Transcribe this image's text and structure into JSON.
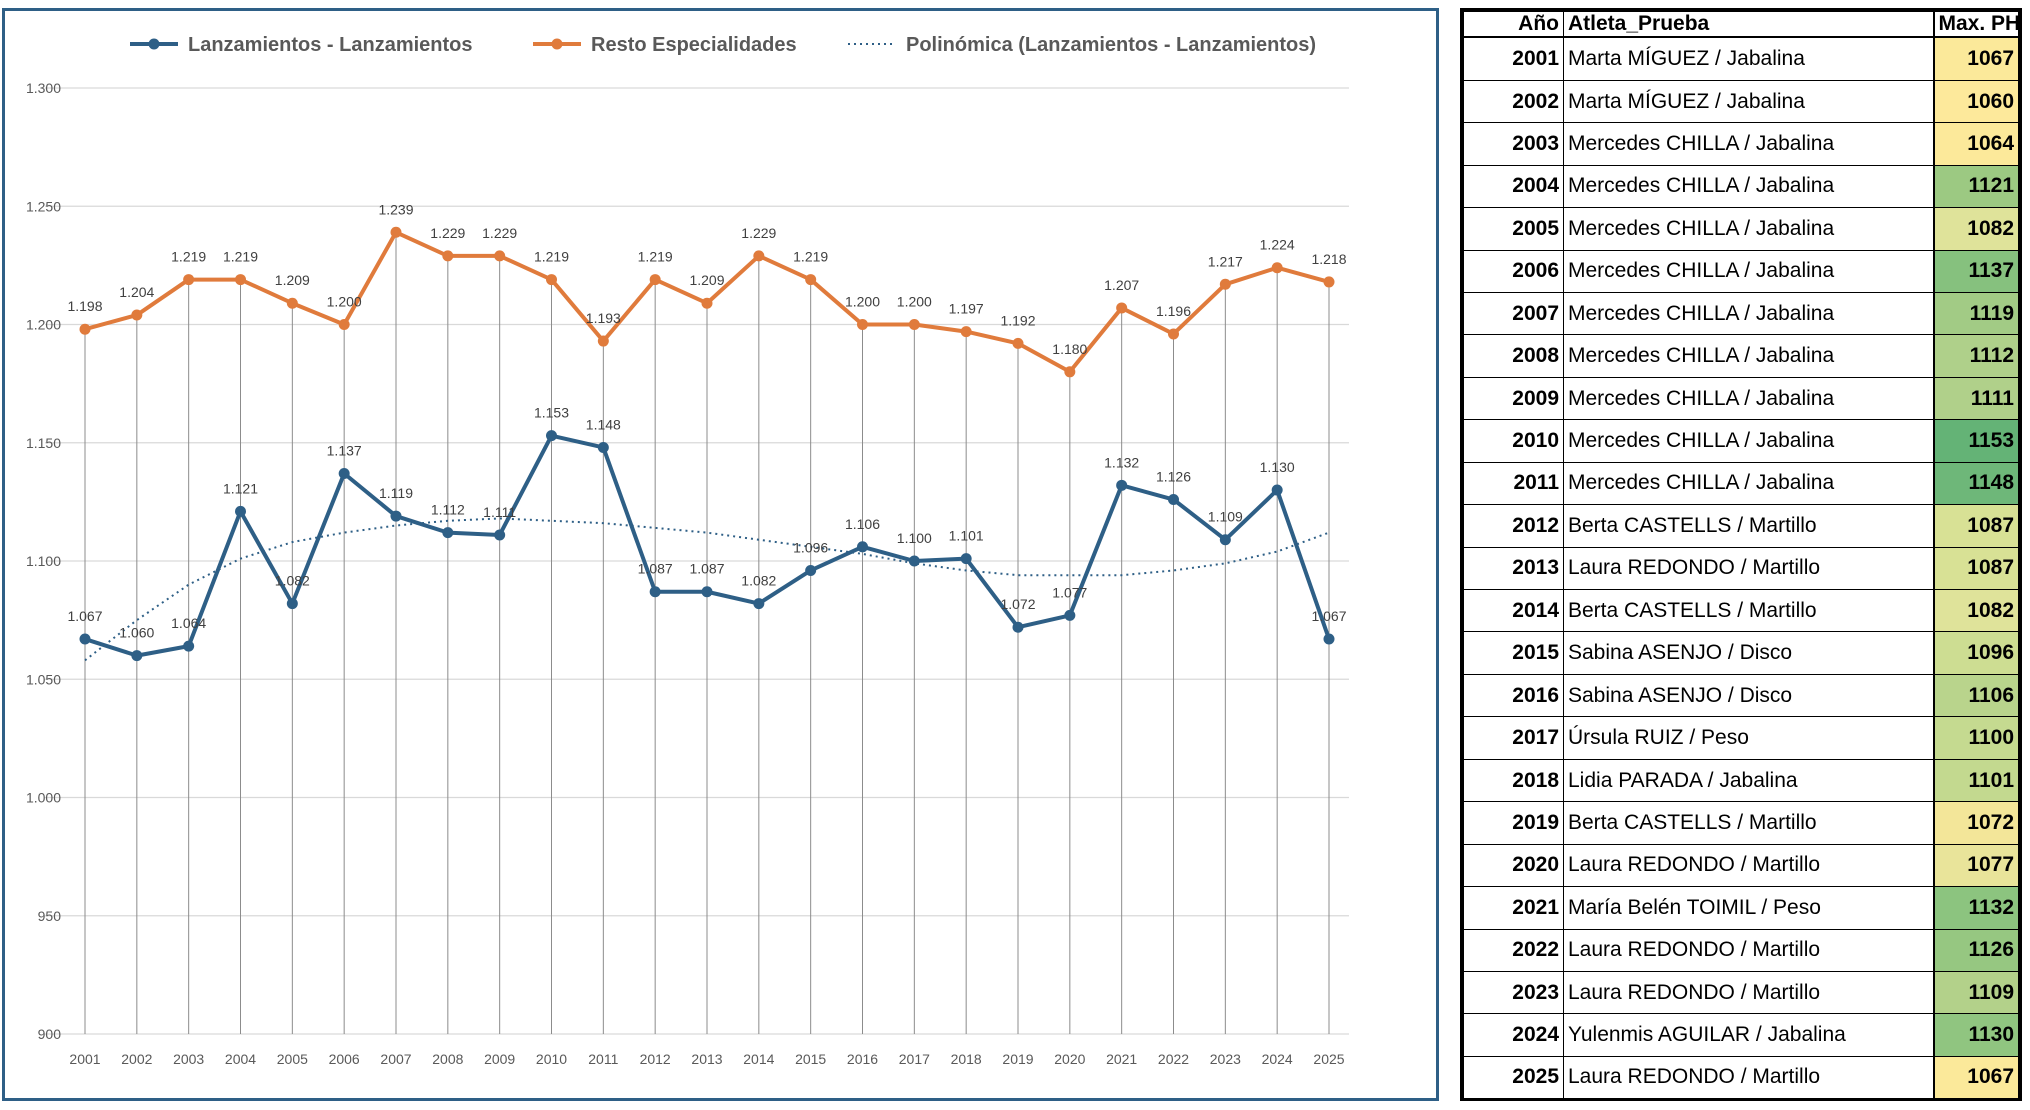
{
  "chart_data": {
    "type": "line",
    "categories": [
      "2001",
      "2002",
      "2003",
      "2004",
      "2005",
      "2006",
      "2007",
      "2008",
      "2009",
      "2010",
      "2011",
      "2012",
      "2013",
      "2014",
      "2015",
      "2016",
      "2017",
      "2018",
      "2019",
      "2020",
      "2021",
      "2022",
      "2023",
      "2024",
      "2025"
    ],
    "series": [
      {
        "name": "Lanzamientos - Lanzamientos",
        "color": "#2e5f86",
        "values": [
          1067,
          1060,
          1064,
          1121,
          1082,
          1137,
          1119,
          1112,
          1111,
          1153,
          1148,
          1087,
          1087,
          1082,
          1096,
          1106,
          1100,
          1101,
          1072,
          1077,
          1132,
          1126,
          1109,
          1130,
          1067
        ],
        "labels": [
          "1.067",
          "1.060",
          "1.064",
          "1.121",
          "1.082",
          "1.137",
          "1.119",
          "1.112",
          "1.111",
          "1.153",
          "1.148",
          "1.087",
          "1.087",
          "1.082",
          "1.096",
          "1.106",
          "1.100",
          "1.101",
          "1.072",
          "1.077",
          "1.132",
          "1.126",
          "1.109",
          "1.130",
          "1.067"
        ]
      },
      {
        "name": "Resto Especialidades",
        "color": "#e07b3c",
        "values": [
          1198,
          1204,
          1219,
          1219,
          1209,
          1200,
          1239,
          1229,
          1229,
          1219,
          1193,
          1219,
          1209,
          1229,
          1219,
          1200,
          1200,
          1197,
          1192,
          1180,
          1207,
          1196,
          1217,
          1224,
          1218
        ],
        "labels": [
          "1.198",
          "1.204",
          "1.219",
          "1.219",
          "1.209",
          "1.200",
          "1.239",
          "1.229",
          "1.229",
          "1.219",
          "1.193",
          "1.219",
          "1.209",
          "1.229",
          "1.219",
          "1.200",
          "1.200",
          "1.197",
          "1.192",
          "1.180",
          "1.207",
          "1.196",
          "1.217",
          "1.224",
          "1.218"
        ]
      }
    ],
    "trendline": {
      "name": "Polinómica (Lanzamientos - Lanzamientos)",
      "color": "#2e5f86",
      "style": "dotted",
      "values": [
        1058,
        1075,
        1090,
        1101,
        1108,
        1112,
        1115,
        1117,
        1118,
        1117,
        1116,
        1114,
        1112,
        1109,
        1106,
        1103,
        1099,
        1096,
        1094,
        1094,
        1094,
        1096,
        1099,
        1104,
        1112
      ]
    },
    "ylim": [
      900,
      1300
    ],
    "yticks": [
      900,
      950,
      1000,
      1050,
      1100,
      1150,
      1200,
      1250,
      1300
    ],
    "ytick_labels": [
      "900",
      "950",
      "1.000",
      "1.050",
      "1.100",
      "1.150",
      "1.200",
      "1.250",
      "1.300"
    ],
    "legend_position": "top",
    "grid": true
  },
  "table": {
    "headers": {
      "year": "Año",
      "athlete": "Atleta_Prueba",
      "max": "Max. PH"
    },
    "rows": [
      {
        "year": "2001",
        "athlete": "Marta MÍGUEZ / Jabalina",
        "max": "1067",
        "color": "#fbe99a"
      },
      {
        "year": "2002",
        "athlete": "Marta MÍGUEZ / Jabalina",
        "max": "1060",
        "color": "#fde99b"
      },
      {
        "year": "2003",
        "athlete": "Mercedes CHILLA / Jabalina",
        "max": "1064",
        "color": "#fce99a"
      },
      {
        "year": "2004",
        "athlete": "Mercedes CHILLA / Jabalina",
        "max": "1121",
        "color": "#9cc982"
      },
      {
        "year": "2005",
        "athlete": "Mercedes CHILLA / Jabalina",
        "max": "1082",
        "color": "#dfe39a"
      },
      {
        "year": "2006",
        "athlete": "Mercedes CHILLA / Jabalina",
        "max": "1137",
        "color": "#86c17e"
      },
      {
        "year": "2007",
        "athlete": "Mercedes CHILLA / Jabalina",
        "max": "1119",
        "color": "#a2cb85"
      },
      {
        "year": "2008",
        "athlete": "Mercedes CHILLA / Jabalina",
        "max": "1112",
        "color": "#afd08a"
      },
      {
        "year": "2009",
        "athlete": "Mercedes CHILLA / Jabalina",
        "max": "1111",
        "color": "#b0d08a"
      },
      {
        "year": "2010",
        "athlete": "Mercedes CHILLA / Jabalina",
        "max": "1153",
        "color": "#64b376"
      },
      {
        "year": "2011",
        "athlete": "Mercedes CHILLA / Jabalina",
        "max": "1148",
        "color": "#6eb779"
      },
      {
        "year": "2012",
        "athlete": "Berta CASTELLS / Martillo",
        "max": "1087",
        "color": "#d8e195"
      },
      {
        "year": "2013",
        "athlete": "Laura REDONDO / Martillo",
        "max": "1087",
        "color": "#d8e195"
      },
      {
        "year": "2014",
        "athlete": "Berta CASTELLS / Martillo",
        "max": "1082",
        "color": "#dfe39a"
      },
      {
        "year": "2015",
        "athlete": "Sabina ASENJO / Disco",
        "max": "1096",
        "color": "#cddd92"
      },
      {
        "year": "2016",
        "athlete": "Sabina ASENJO / Disco",
        "max": "1106",
        "color": "#b9d48c"
      },
      {
        "year": "2017",
        "athlete": "Úrsula RUIZ / Peso",
        "max": "1100",
        "color": "#c5da90"
      },
      {
        "year": "2018",
        "athlete": "Lidia PARADA / Jabalina",
        "max": "1101",
        "color": "#c3d98f"
      },
      {
        "year": "2019",
        "athlete": "Berta CASTELLS / Martillo",
        "max": "1072",
        "color": "#f3e699"
      },
      {
        "year": "2020",
        "athlete": "Laura REDONDO / Martillo",
        "max": "1077",
        "color": "#e9e49a"
      },
      {
        "year": "2021",
        "athlete": "María Belén TOIMIL / Peso",
        "max": "1132",
        "color": "#8cc47f"
      },
      {
        "year": "2022",
        "athlete": "Laura REDONDO / Martillo",
        "max": "1126",
        "color": "#96c781"
      },
      {
        "year": "2023",
        "athlete": "Laura REDONDO / Martillo",
        "max": "1109",
        "color": "#b3d18a"
      },
      {
        "year": "2024",
        "athlete": "Yulenmis AGUILAR / Jabalina",
        "max": "1130",
        "color": "#90c580"
      },
      {
        "year": "2025",
        "athlete": "Laura REDONDO / Martillo",
        "max": "1067",
        "color": "#fbe99a"
      }
    ]
  }
}
